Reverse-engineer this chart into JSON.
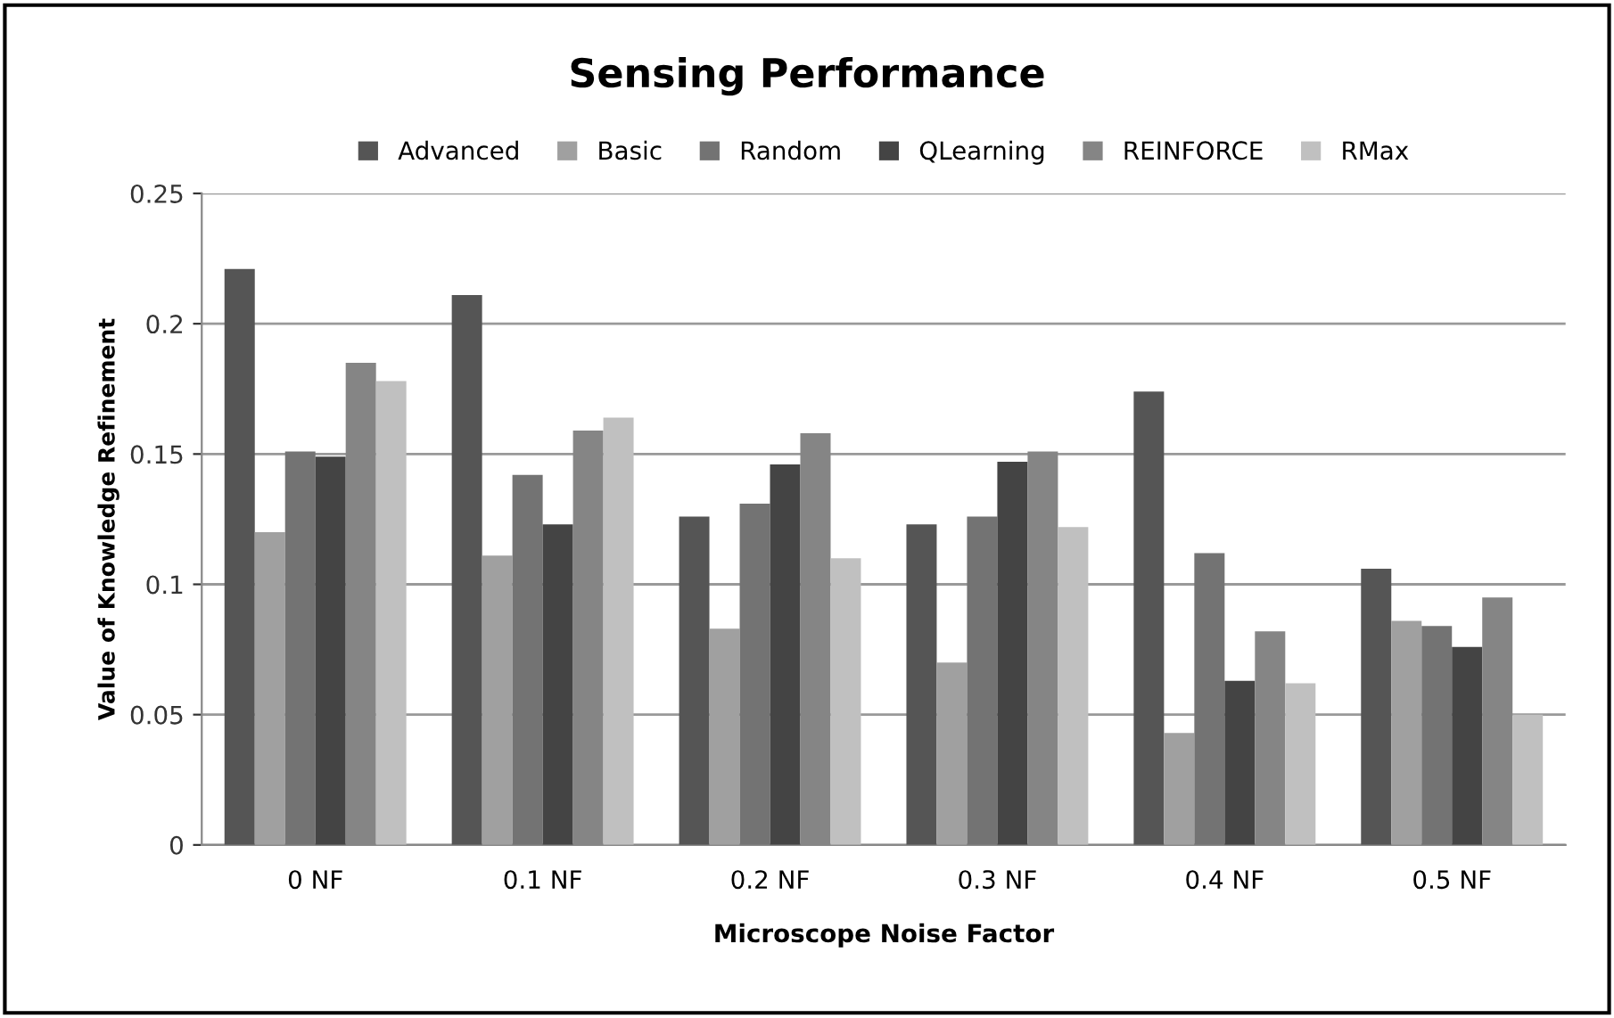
{
  "chart_data": {
    "type": "bar",
    "title": "Sensing Performance",
    "xlabel": "Microscope Noise Factor",
    "ylabel": "Value of Knowledge Refinement",
    "categories": [
      "0 NF",
      "0.1 NF",
      "0.2 NF",
      "0.3 NF",
      "0.4 NF",
      "0.5 NF"
    ],
    "series": [
      {
        "name": "Advanced",
        "color": "#555555",
        "values": [
          0.221,
          0.211,
          0.126,
          0.123,
          0.174,
          0.106
        ]
      },
      {
        "name": "Basic",
        "color": "#a0a0a0",
        "values": [
          0.12,
          0.111,
          0.083,
          0.07,
          0.043,
          0.086
        ]
      },
      {
        "name": "Random",
        "color": "#737373",
        "values": [
          0.151,
          0.142,
          0.131,
          0.126,
          0.112,
          0.084
        ]
      },
      {
        "name": "QLearning",
        "color": "#444444",
        "values": [
          0.149,
          0.123,
          0.146,
          0.147,
          0.063,
          0.076
        ]
      },
      {
        "name": "REINFORCE",
        "color": "#858585",
        "values": [
          0.185,
          0.159,
          0.158,
          0.151,
          0.082,
          0.095
        ]
      },
      {
        "name": "RMax",
        "color": "#c0c0c0",
        "values": [
          0.178,
          0.164,
          0.11,
          0.122,
          0.062,
          0.05
        ]
      }
    ],
    "ylim": [
      0,
      0.25
    ],
    "yticks": [
      0,
      0.05,
      0.1,
      0.15,
      0.2,
      0.25
    ],
    "grid": "y",
    "legend": "top"
  }
}
